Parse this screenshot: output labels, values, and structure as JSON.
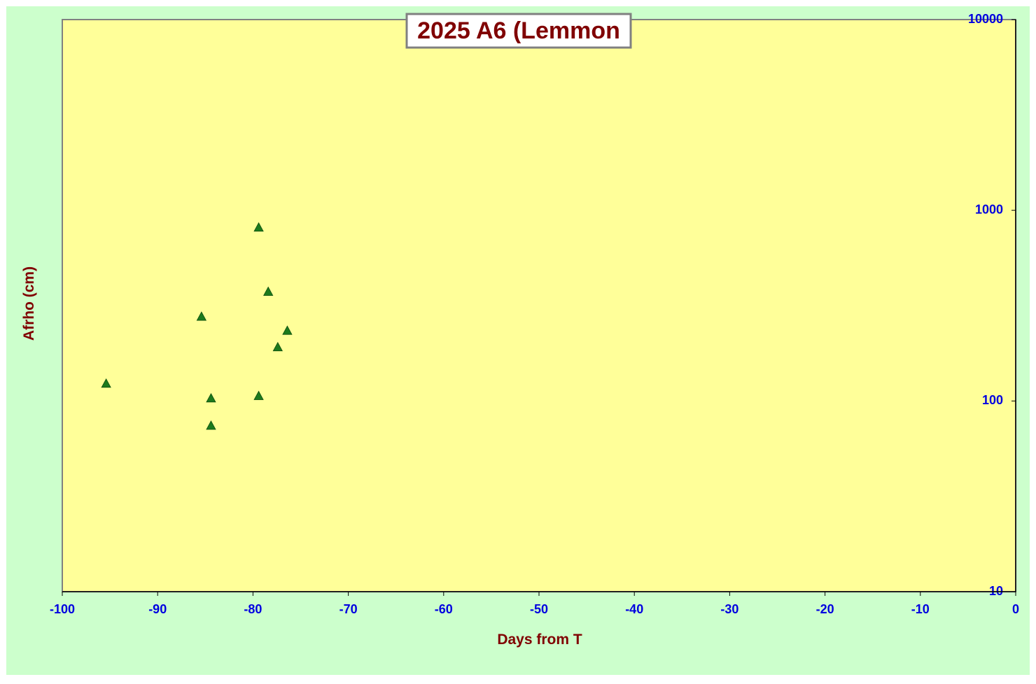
{
  "chart_data": {
    "type": "scatter",
    "title": "2025 A6 (Lemmon",
    "x_label": "Days from T",
    "y_label": "Afrho (cm)",
    "xlim": [
      -100,
      0
    ],
    "xticks": [
      -100,
      -90,
      -80,
      -70,
      -60,
      -50,
      -40,
      -30,
      -20,
      -10,
      0
    ],
    "ylim": [
      10,
      10000
    ],
    "yticks": [
      10,
      100,
      1000,
      10000
    ],
    "y_scale": "log",
    "y_axis_side": "right",
    "series": [
      {
        "color": "#1c7a1c",
        "x": [
          -95.4,
          -85.4,
          -84.4,
          -84.4,
          -79.4,
          -79.4,
          -78.4,
          -77.4,
          -76.4
        ],
        "values": [
          123,
          276,
          103,
          74,
          810,
          106,
          373,
          191,
          233
        ]
      }
    ]
  }
}
